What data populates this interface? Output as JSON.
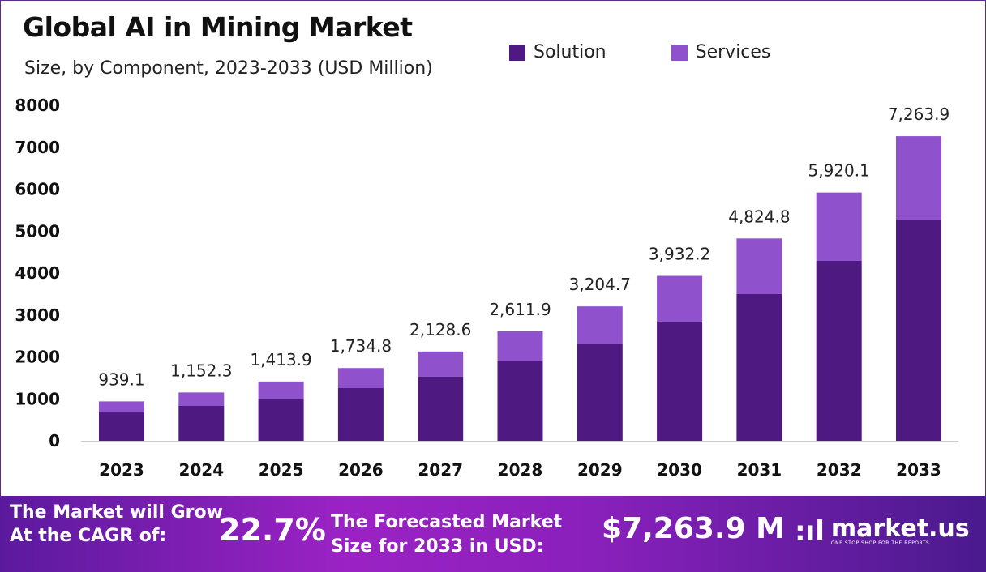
{
  "chart_data": {
    "type": "bar",
    "stacked": true,
    "title": "Global AI in Mining Market",
    "subtitle": "Size, by Component, 2023-2033 (USD Million)",
    "categories": [
      "2023",
      "2024",
      "2025",
      "2026",
      "2027",
      "2028",
      "2029",
      "2030",
      "2031",
      "2032",
      "2033"
    ],
    "series": [
      {
        "name": "Solution",
        "color": "#4e1a82",
        "values": [
          676,
          831,
          1005,
          1256,
          1527,
          1894,
          2319,
          2841,
          3498,
          4290,
          5275
        ]
      },
      {
        "name": "Services",
        "color": "#8f52cc",
        "values": [
          263.1,
          321.3,
          408.9,
          478.8,
          601.6,
          717.9,
          885.7,
          1091.2,
          1326.8,
          1630.1,
          1988.9
        ]
      }
    ],
    "totals": [
      939.1,
      1152.3,
      1413.9,
      1734.8,
      2128.6,
      2611.9,
      3204.7,
      3932.2,
      4824.8,
      5920.1,
      7263.9
    ],
    "total_labels": [
      "939.1",
      "1,152.3",
      "1,413.9",
      "1,734.8",
      "2,128.6",
      "2,611.9",
      "3,204.7",
      "3,932.2",
      "4,824.8",
      "5,920.1",
      "7,263.9"
    ],
    "yticks": [
      "0",
      "1000",
      "2000",
      "3000",
      "4000",
      "5000",
      "6000",
      "7000",
      "8000"
    ],
    "ylim": [
      0,
      8000
    ],
    "xlabel": "",
    "ylabel": "",
    "grid": false,
    "legend_position": "top-right"
  },
  "footer": {
    "cagr_text_line1": "The Market will Grow",
    "cagr_text_line2": "At the CAGR of:",
    "cagr_value": "22.7%",
    "forecast_text_line1": "The Forecasted Market",
    "forecast_text_line2": "Size for 2033 in USD:",
    "forecast_value": "$7,263.9 M",
    "logo_text": "market.us",
    "logo_tagline": "ONE STOP SHOP FOR THE REPORTS"
  }
}
